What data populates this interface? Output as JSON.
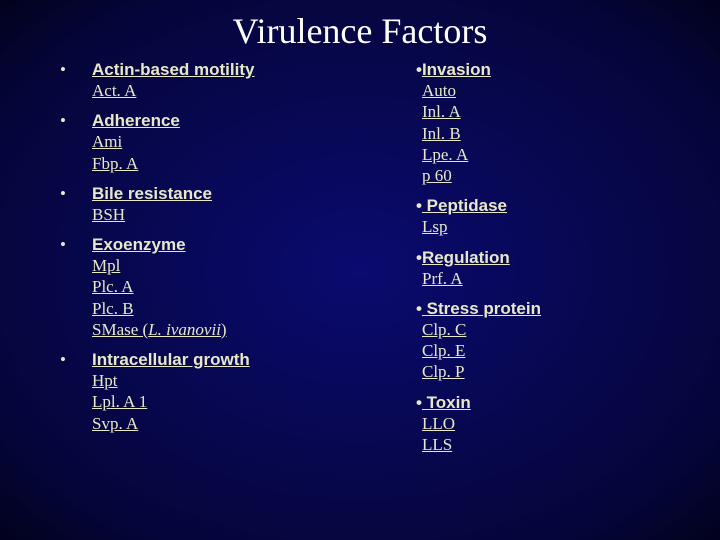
{
  "title": "Virulence Factors",
  "colors": {
    "background_center": "#0a0a70",
    "background_edge": "#02021d",
    "title_color": "#ffffff",
    "text_color": "#e8e8c8"
  },
  "typography": {
    "title_fontsize": 36,
    "heading_fontsize": 17,
    "item_fontsize": 17,
    "heading_family": "Arial",
    "body_family": "Times New Roman"
  },
  "left": [
    {
      "heading": "Actin-based motility",
      "items": [
        "Act. A"
      ]
    },
    {
      "heading": "Adherence",
      "items": [
        "Ami",
        "Fbp. A"
      ]
    },
    {
      "heading": "Bile resistance",
      "items": [
        "BSH"
      ]
    },
    {
      "heading": "Exoenzyme",
      "items": [
        "Mpl",
        "Plc. A",
        "Plc. B"
      ],
      "tail": {
        "prefix": "SMase (",
        "italic": "L. ivanovii",
        "suffix": ")"
      }
    },
    {
      "heading": "Intracellular growth",
      "items": [
        "Hpt",
        "Lpl. A 1",
        "Svp. A"
      ]
    }
  ],
  "right": [
    {
      "heading": "Invasion",
      "items": [
        "Auto",
        "Inl. A",
        "Inl. B",
        "Lpe. A",
        "p 60"
      ]
    },
    {
      "heading": " Peptidase",
      "items": [
        "Lsp"
      ]
    },
    {
      "heading": "Regulation",
      "items": [
        "Prf. A"
      ]
    },
    {
      "heading": " Stress protein",
      "items": [
        "Clp. C",
        "Clp. E",
        "Clp. P"
      ]
    },
    {
      "heading": " Toxin",
      "items": [
        "LLO",
        "LLS"
      ]
    }
  ]
}
